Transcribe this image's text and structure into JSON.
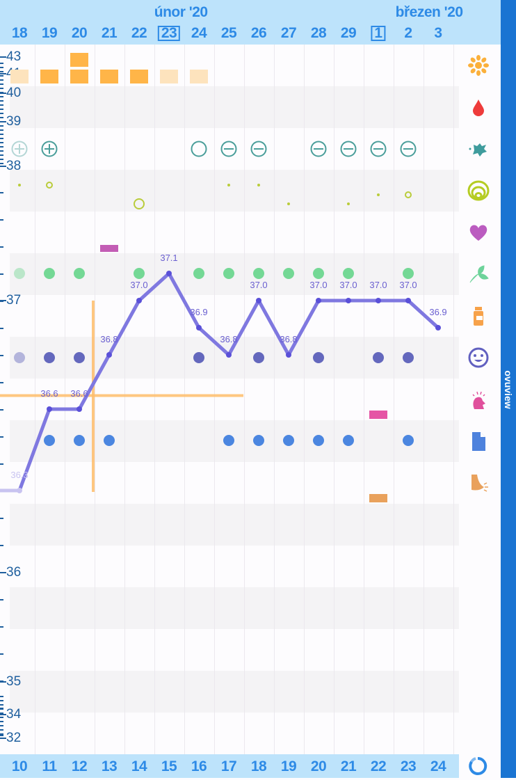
{
  "header": {
    "months": [
      {
        "label": "únor '20",
        "col": 5.4
      },
      {
        "label": "březen '20",
        "col": 13.7
      }
    ],
    "days": [
      "18",
      "19",
      "20",
      "21",
      "22",
      "23",
      "24",
      "25",
      "26",
      "27",
      "28",
      "29",
      "1",
      "2",
      "3"
    ],
    "highlighted_days": [
      "23",
      "1"
    ]
  },
  "footer": {
    "cycle_days": [
      "10",
      "11",
      "12",
      "13",
      "14",
      "15",
      "16",
      "17",
      "18",
      "19",
      "20",
      "21",
      "22",
      "23",
      "24"
    ],
    "cycle_icon": "cycle-refresh-icon"
  },
  "brand": {
    "label": "ovuview"
  },
  "y_axis_labels": [
    "43",
    "41",
    "40",
    "39",
    "38",
    "37",
    "36",
    "35",
    "34",
    "32"
  ],
  "colors": {
    "header_bg": "#bde3fb",
    "accent": "#2d8ae6",
    "brand_bar": "#1a74d2",
    "temp_line": "#7f78e0",
    "crosshair": "#ffbe6b"
  },
  "row_icons": [
    "sun-icon",
    "blood-drop-icon",
    "splash-icon",
    "cervix-rings-icon",
    "heart-icon",
    "leaf-icon",
    "pill-bottle-icon",
    "smiley-icon",
    "pain-head-icon",
    "note-document-icon",
    "breast-icon"
  ],
  "chart_data": {
    "type": "line",
    "x": [
      "10",
      "11",
      "12",
      "13",
      "14",
      "15",
      "16",
      "17",
      "18",
      "19",
      "20",
      "21",
      "22",
      "23",
      "24"
    ],
    "values": [
      36.3,
      36.6,
      36.6,
      36.8,
      37.0,
      37.1,
      36.9,
      36.8,
      37.0,
      36.8,
      37.0,
      37.0,
      37.0,
      37.0,
      36.9
    ],
    "labels": [
      "36.3",
      "36.6",
      "36.6",
      "36.8",
      "37.0",
      "37.1",
      "36.9",
      "36.8",
      "37.0",
      "36.8",
      "37.0",
      "37.0",
      "37.0",
      "37.0",
      "36.9"
    ],
    "coverline": 36.65,
    "ovulation_day": "12"
  },
  "markers": {
    "bleeding": [
      {
        "day": "18",
        "level": 1,
        "faded": true
      },
      {
        "day": "19",
        "level": 1
      },
      {
        "day": "20",
        "level": 2
      },
      {
        "day": "21",
        "level": 1
      },
      {
        "day": "22",
        "level": 1
      },
      {
        "day": "23",
        "level": 1,
        "faded": true
      },
      {
        "day": "24",
        "level": 1,
        "faded": true
      }
    ],
    "tests": [
      {
        "day": "18",
        "sign": "plus",
        "faded": true
      },
      {
        "day": "19",
        "sign": "plus"
      },
      {
        "day": "24",
        "sign": "empty"
      },
      {
        "day": "25",
        "sign": "minus"
      },
      {
        "day": "26",
        "sign": "minus"
      },
      {
        "day": "28",
        "sign": "minus"
      },
      {
        "day": "29",
        "sign": "minus"
      },
      {
        "day": "1",
        "sign": "minus"
      },
      {
        "day": "2",
        "sign": "minus"
      }
    ],
    "cervix": [
      {
        "day": "18",
        "kind": "dot",
        "pos": "high"
      },
      {
        "day": "19",
        "kind": "ring",
        "pos": "high"
      },
      {
        "day": "22",
        "kind": "bigring",
        "pos": "low"
      },
      {
        "day": "25",
        "kind": "dot",
        "pos": "high"
      },
      {
        "day": "26",
        "kind": "dot",
        "pos": "high"
      },
      {
        "day": "27",
        "kind": "dot",
        "pos": "low"
      },
      {
        "day": "29",
        "kind": "dot",
        "pos": "low"
      },
      {
        "day": "1",
        "kind": "dot",
        "pos": "mid"
      },
      {
        "day": "2",
        "kind": "ring",
        "pos": "mid"
      }
    ],
    "intercourse": [
      "21"
    ],
    "herbs": [
      "18",
      "19",
      "20",
      "22",
      "24",
      "25",
      "26",
      "27",
      "28",
      "29",
      "2"
    ],
    "mood": [
      "18",
      "19",
      "20",
      "24",
      "26",
      "28",
      "1",
      "2"
    ],
    "pain": [
      "1"
    ],
    "notes": [
      "19",
      "20",
      "21",
      "25",
      "26",
      "27",
      "28",
      "29",
      "2"
    ],
    "breast": [
      "1"
    ]
  }
}
